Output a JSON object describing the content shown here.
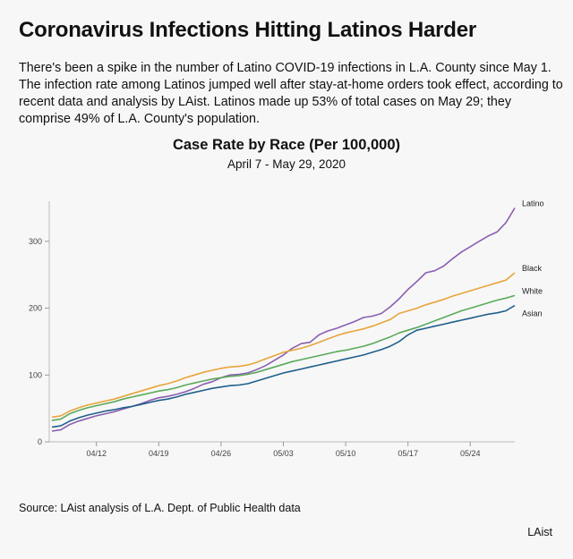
{
  "headline": "Coronavirus Infections Hitting Latinos Harder",
  "deck": "There's been a spike in the number of Latino COVID-19 infections in L.A. County since May 1. The infection rate among Latinos jumped well after stay-at-home orders took effect, according to recent data and analysis by LAist. Latinos made up 53% of total cases on May 29; they comprise 49% of L.A. County's population.",
  "source": "Source: LAist analysis of L.A. Dept. of Public Health data",
  "credit": "LAist",
  "chart_data": {
    "type": "line",
    "title": "Case Rate by Race (Per 100,000)",
    "subtitle": "April 7 - May 29, 2020",
    "xlabel": "",
    "ylabel": "",
    "ylim": [
      0,
      360
    ],
    "yticks": [
      0,
      100,
      200,
      300
    ],
    "xticks": [
      {
        "index": 5,
        "label": "04/12"
      },
      {
        "index": 12,
        "label": "04/19"
      },
      {
        "index": 19,
        "label": "04/26"
      },
      {
        "index": 26,
        "label": "05/03"
      },
      {
        "index": 33,
        "label": "05/10"
      },
      {
        "index": 40,
        "label": "05/17"
      },
      {
        "index": 47,
        "label": "05/24"
      }
    ],
    "x_count": 53,
    "series": [
      {
        "name": "Latino",
        "color": "#8a5fb0",
        "values": [
          16,
          18,
          26,
          31,
          35,
          39,
          42,
          45,
          49,
          53,
          57,
          62,
          66,
          68,
          71,
          75,
          80,
          86,
          90,
          96,
          100,
          101,
          103,
          108,
          114,
          122,
          130,
          140,
          147,
          149,
          160,
          166,
          170,
          175,
          180,
          186,
          188,
          192,
          202,
          214,
          228,
          240,
          253,
          256,
          263,
          274,
          284,
          292,
          300,
          308,
          314,
          328,
          350
        ]
      },
      {
        "name": "Black",
        "color": "#e8a53b",
        "values": [
          37,
          39,
          46,
          51,
          55,
          58,
          61,
          64,
          68,
          72,
          76,
          80,
          84,
          87,
          91,
          96,
          100,
          104,
          107,
          110,
          112,
          113,
          115,
          119,
          124,
          129,
          134,
          137,
          140,
          144,
          149,
          154,
          159,
          163,
          166,
          169,
          173,
          178,
          183,
          192,
          196,
          200,
          205,
          209,
          213,
          218,
          222,
          226,
          230,
          234,
          238,
          242,
          253
        ]
      },
      {
        "name": "White",
        "color": "#5aaa5a",
        "values": [
          32,
          34,
          42,
          47,
          51,
          54,
          57,
          60,
          64,
          67,
          70,
          73,
          76,
          78,
          81,
          85,
          88,
          91,
          94,
          96,
          98,
          99,
          101,
          104,
          108,
          112,
          116,
          120,
          123,
          126,
          129,
          132,
          135,
          137,
          140,
          143,
          147,
          152,
          157,
          163,
          167,
          171,
          176,
          181,
          186,
          191,
          196,
          200,
          204,
          208,
          212,
          215,
          219
        ]
      },
      {
        "name": "Asian",
        "color": "#1f5f8b",
        "values": [
          22,
          24,
          31,
          36,
          40,
          43,
          46,
          48,
          51,
          53,
          56,
          59,
          62,
          64,
          67,
          71,
          74,
          77,
          80,
          82,
          84,
          85,
          87,
          91,
          95,
          99,
          103,
          106,
          109,
          112,
          115,
          118,
          121,
          124,
          127,
          130,
          134,
          138,
          143,
          150,
          160,
          167,
          170,
          173,
          176,
          179,
          182,
          185,
          188,
          191,
          193,
          196,
          204
        ]
      }
    ]
  }
}
